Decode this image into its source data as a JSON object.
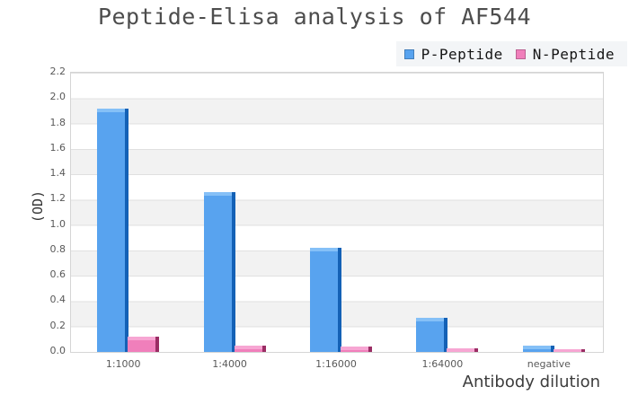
{
  "title": "Peptide-Elisa analysis of AF544",
  "axes": {
    "y_label": "(OD)",
    "x_label": "Antibody dilution"
  },
  "chart_data": {
    "type": "bar",
    "title": "Peptide-Elisa analysis of AF544",
    "xlabel": "Antibody dilution",
    "ylabel": "(OD)",
    "categories": [
      "1:1000",
      "1:4000",
      "1:16000",
      "1:64000",
      "negative"
    ],
    "series": [
      {
        "name": "P-Peptide",
        "values": [
          1.92,
          1.26,
          0.82,
          0.27,
          0.05
        ],
        "face": "#58a3ef",
        "top": "#85c0f7",
        "side": "#1461b6"
      },
      {
        "name": "N-Peptide",
        "values": [
          0.12,
          0.05,
          0.04,
          0.03,
          0.02
        ],
        "face": "#f07fbb",
        "top": "#f7a6d3",
        "side": "#9a2d64"
      }
    ],
    "ylim": [
      0,
      2.2
    ],
    "ytick_step": 0.2,
    "yticks": [
      "0.0",
      "0.2",
      "0.4",
      "0.6",
      "0.8",
      "1.0",
      "1.2",
      "1.4",
      "1.6",
      "1.8",
      "2.0",
      "2.2"
    ],
    "grid": true,
    "band_style": "alternating horizontal stripes",
    "legend_position": "top-right",
    "bar_style": "pseudo-3d"
  },
  "colors": {
    "title_text": "#4d4d4d",
    "legend_bg": "#f3f5f7",
    "band": "#f2f2f2",
    "gridline": "#e0e0e0",
    "plot_border": "#d5d5d5",
    "tick_text": "#595959"
  }
}
